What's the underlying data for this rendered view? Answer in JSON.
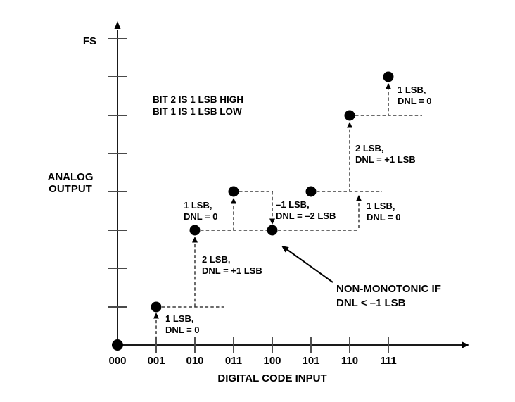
{
  "colors": {
    "ink": "#000000",
    "axis": "#1a1a1a",
    "tick": "#4a4a4a",
    "dash": "#3a3a3a",
    "background": "#ffffff"
  },
  "y_axis": {
    "title_line1": "ANALOG",
    "title_line2": "OUTPUT",
    "top_tick_label": "FS",
    "tick_count": 8
  },
  "x_axis": {
    "title": "DIGITAL CODE INPUT",
    "codes": [
      "000",
      "001",
      "010",
      "011",
      "100",
      "101",
      "110",
      "111"
    ]
  },
  "transfer": {
    "levels_lsb": [
      0,
      1,
      3,
      4,
      3,
      4,
      6,
      7
    ]
  },
  "note": {
    "line1": "BIT 2 IS 1 LSB HIGH",
    "line2": "BIT 1 IS 1 LSB LOW"
  },
  "callout": {
    "line1": "NON-MONOTONIC IF",
    "line2": "DNL < –1 LSB"
  },
  "steps": [
    {
      "line1": "1 LSB,",
      "line2": "DNL = 0"
    },
    {
      "line1": "2 LSB,",
      "line2": "DNL = +1 LSB"
    },
    {
      "line1": "1 LSB,",
      "line2": "DNL = 0"
    },
    {
      "line1": "–1 LSB,",
      "line2": "DNL = –2 LSB"
    },
    {
      "line1": "1 LSB,",
      "line2": "DNL = 0"
    },
    {
      "line1": "2 LSB,",
      "line2": "DNL = +1 LSB"
    },
    {
      "line1": "1 LSB,",
      "line2": "DNL = 0"
    }
  ]
}
